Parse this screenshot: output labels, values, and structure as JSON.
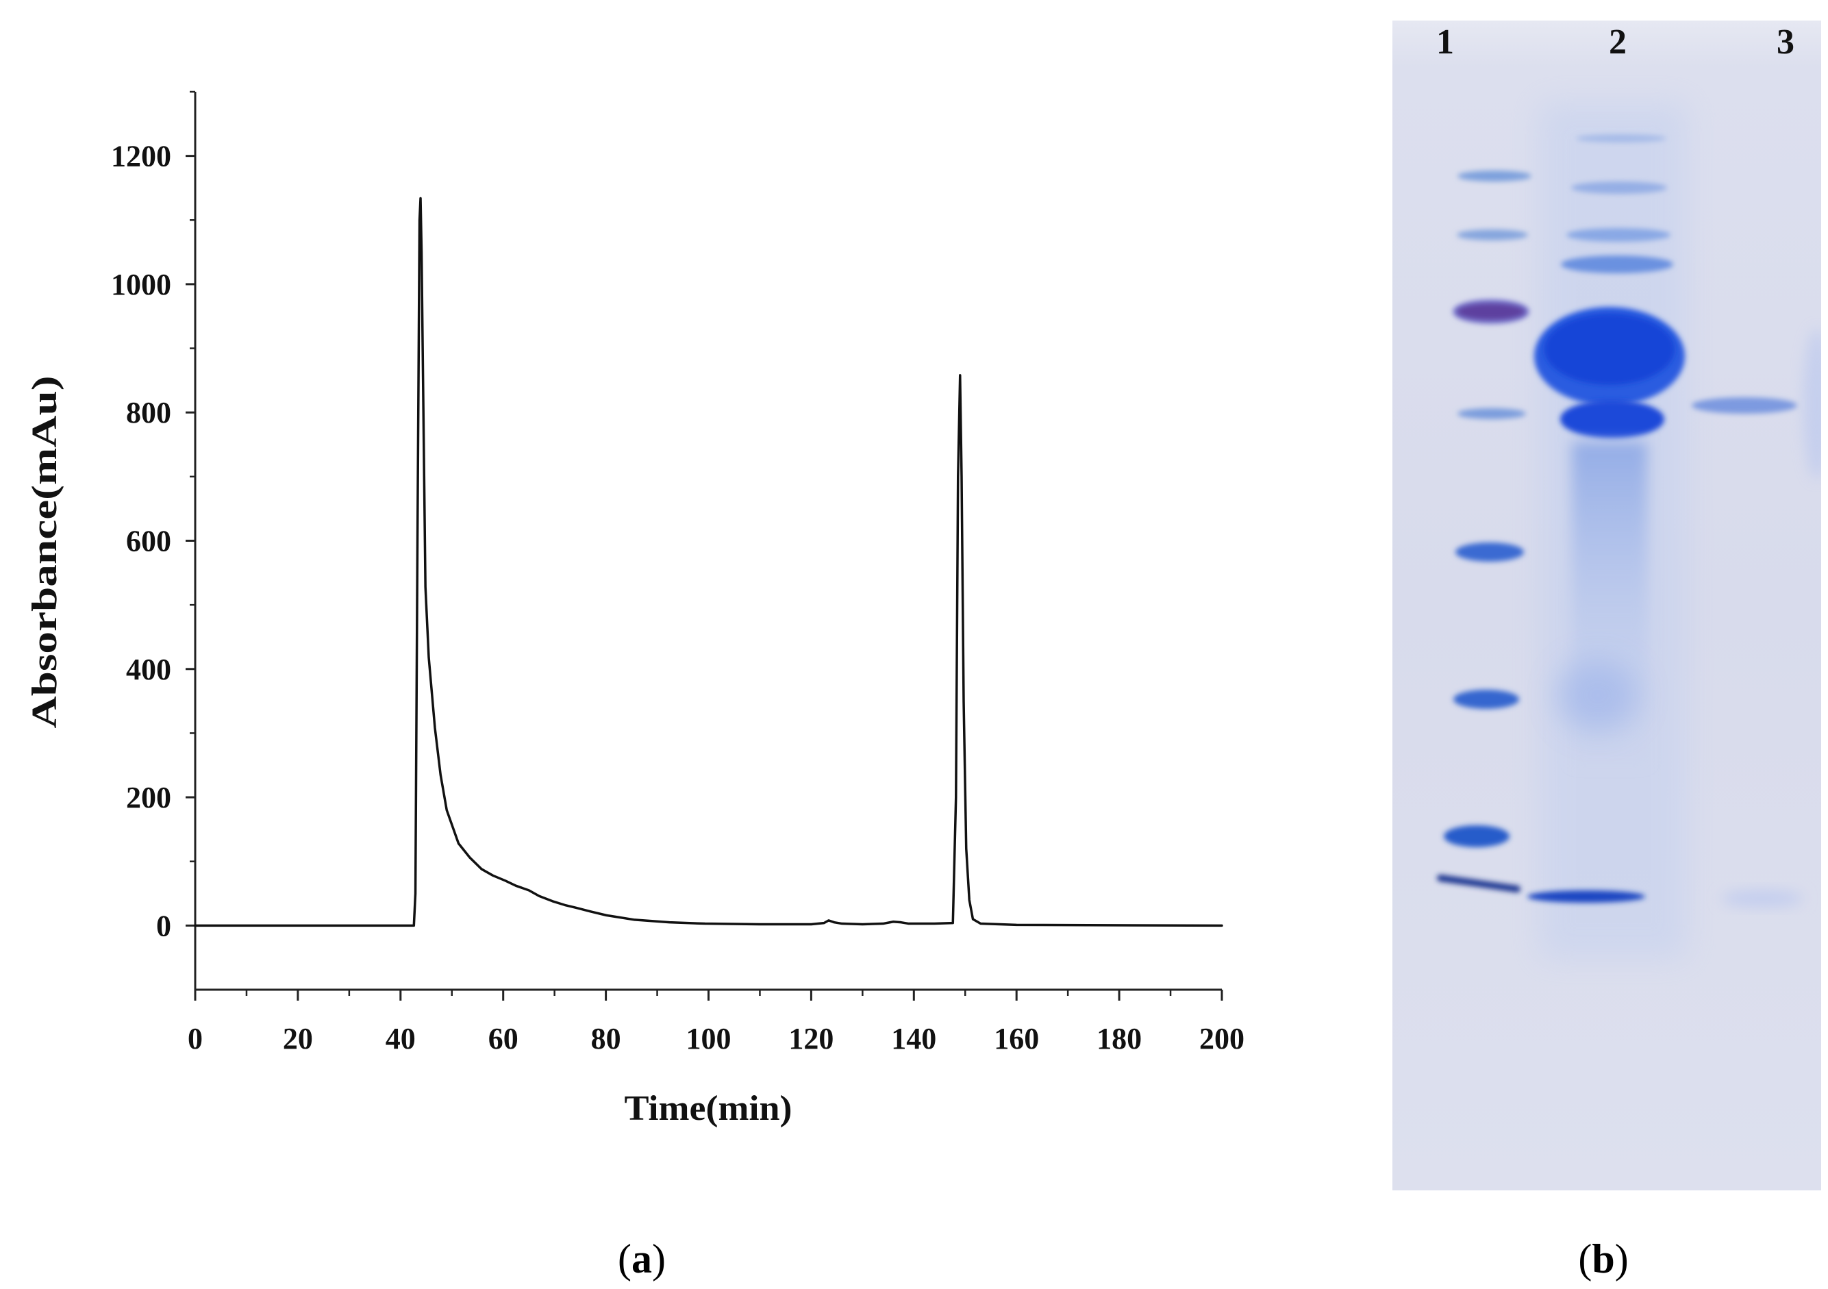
{
  "figure": {
    "panel_labels": [
      "(a)",
      "(b)"
    ]
  },
  "chart_data": {
    "type": "line",
    "xlabel": "Time(min)",
    "ylabel": "Absorbance(mAu)",
    "xlim": [
      0,
      200
    ],
    "ylim": [
      -100,
      1300
    ],
    "xticks": [
      0,
      20,
      40,
      60,
      80,
      100,
      120,
      140,
      160,
      180,
      200
    ],
    "yticks": [
      0,
      200,
      400,
      600,
      800,
      1000,
      1200
    ],
    "grid": false,
    "legend": "none",
    "series": [
      {
        "x": [
          0,
          42.6,
          42.9,
          43.3,
          43.7,
          43.9,
          44.1,
          44.4,
          44.85,
          45.5,
          46.7,
          47.8,
          49.0,
          51.3,
          53.5,
          55.8,
          58,
          60.4,
          62.5,
          65,
          67,
          69.6,
          72,
          74.1,
          77,
          80.1,
          85.6,
          92.4,
          99.3,
          110,
          120,
          122.5,
          123.4,
          124.5,
          126,
          130,
          134,
          136,
          137.5,
          139,
          144,
          147.6,
          148.2,
          148.6,
          149,
          149.3,
          149.7,
          150.2,
          150.8,
          151.5,
          153,
          160,
          200
        ],
        "y": [
          0,
          0,
          50,
          600,
          1100,
          1134,
          1050,
          840,
          528,
          418,
          308,
          235,
          180,
          128,
          106,
          88,
          78,
          70,
          62,
          55,
          46,
          38,
          32,
          28,
          22,
          16,
          9,
          5,
          3,
          2,
          2,
          4,
          8,
          5,
          3,
          2,
          3,
          6,
          5,
          3,
          3,
          4,
          200,
          700,
          858,
          700,
          350,
          120,
          40,
          10,
          3,
          1,
          0
        ]
      }
    ]
  },
  "gel": {
    "lane_labels": [
      "1",
      "2",
      "3"
    ]
  },
  "colors": {
    "line": "#111111",
    "axis": "#222222",
    "gel_background": "#d9dcee",
    "stain_blue": "#1544d7",
    "marker_purple": "#5d3f9f"
  }
}
